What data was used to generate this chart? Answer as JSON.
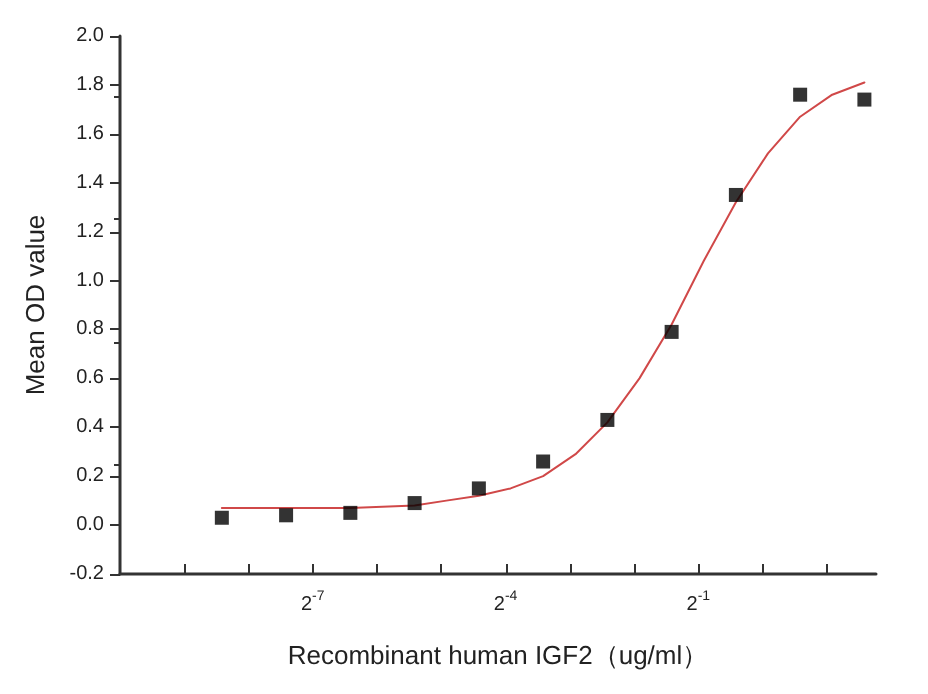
{
  "chart_data": {
    "type": "scatter",
    "xlabel": "Recombinant human IGF2（ug/ml）",
    "ylabel": "Mean OD value",
    "log": "x",
    "grid": false,
    "xlim": [
      0.0009765625,
      3.4
    ],
    "xticks": [
      {
        "value": 0.001953125,
        "label": null
      },
      {
        "value": 0.00390625,
        "label": null
      },
      {
        "value": 0.0078125,
        "label": "2$^{-7}$"
      },
      {
        "value": 0.015625,
        "label": null
      },
      {
        "value": 0.03125,
        "label": null
      },
      {
        "value": 0.0625,
        "label": "2$^{-4}$"
      },
      {
        "value": 0.125,
        "label": null
      },
      {
        "value": 0.25,
        "label": null
      },
      {
        "value": 0.5,
        "label": "2$^{-1}$"
      },
      {
        "value": 1,
        "label": null
      },
      {
        "value": 2,
        "label": null
      }
    ],
    "ylim": [
      -0.2,
      2.0
    ],
    "yticks": [
      {
        "value": -0.2,
        "label": "-0.2"
      },
      {
        "value": 0,
        "label": "0.0"
      },
      {
        "value": 0.2,
        "label": "0.2"
      },
      {
        "value": 0.4,
        "label": "0.4"
      },
      {
        "value": 0.6,
        "label": "0.6"
      },
      {
        "value": 0.8,
        "label": "0.8"
      },
      {
        "value": 1,
        "label": "1.0"
      },
      {
        "value": 1.2,
        "label": "1.2"
      },
      {
        "value": 1.4,
        "label": "1.4"
      },
      {
        "value": 1.6,
        "label": "1.6"
      },
      {
        "value": 1.8,
        "label": "1.8"
      },
      {
        "value": 2,
        "label": "2.0"
      }
    ],
    "series": [
      {
        "color": "#000000",
        "marker": "square",
        "x": [
          0.0029296875,
          0.005859375,
          0.01171875,
          0.0234375,
          0.046875,
          0.09375,
          0.1875,
          0.375,
          0.75,
          1.5,
          3
        ],
        "values": [
          0.03,
          0.04,
          0.05,
          0.09,
          0.15,
          0.26,
          0.43,
          0.79,
          1.35,
          1.76,
          1.74
        ]
      },
      {
        "type": "line",
        "color": "#d04848",
        "marker": "none",
        "line_style": "solid",
        "x": [
          0.0029296875,
          0.005859375,
          0.01171875,
          0.0234375,
          0.033,
          0.046875,
          0.066,
          0.09375,
          0.133,
          0.1875,
          0.265,
          0.375,
          0.53,
          0.75,
          1.06,
          1.5,
          2.12,
          3
        ],
        "values": [
          0.07,
          0.07,
          0.07,
          0.08,
          0.1,
          0.12,
          0.15,
          0.2,
          0.29,
          0.42,
          0.6,
          0.82,
          1.08,
          1.32,
          1.52,
          1.67,
          1.76,
          1.81
        ]
      }
    ]
  }
}
